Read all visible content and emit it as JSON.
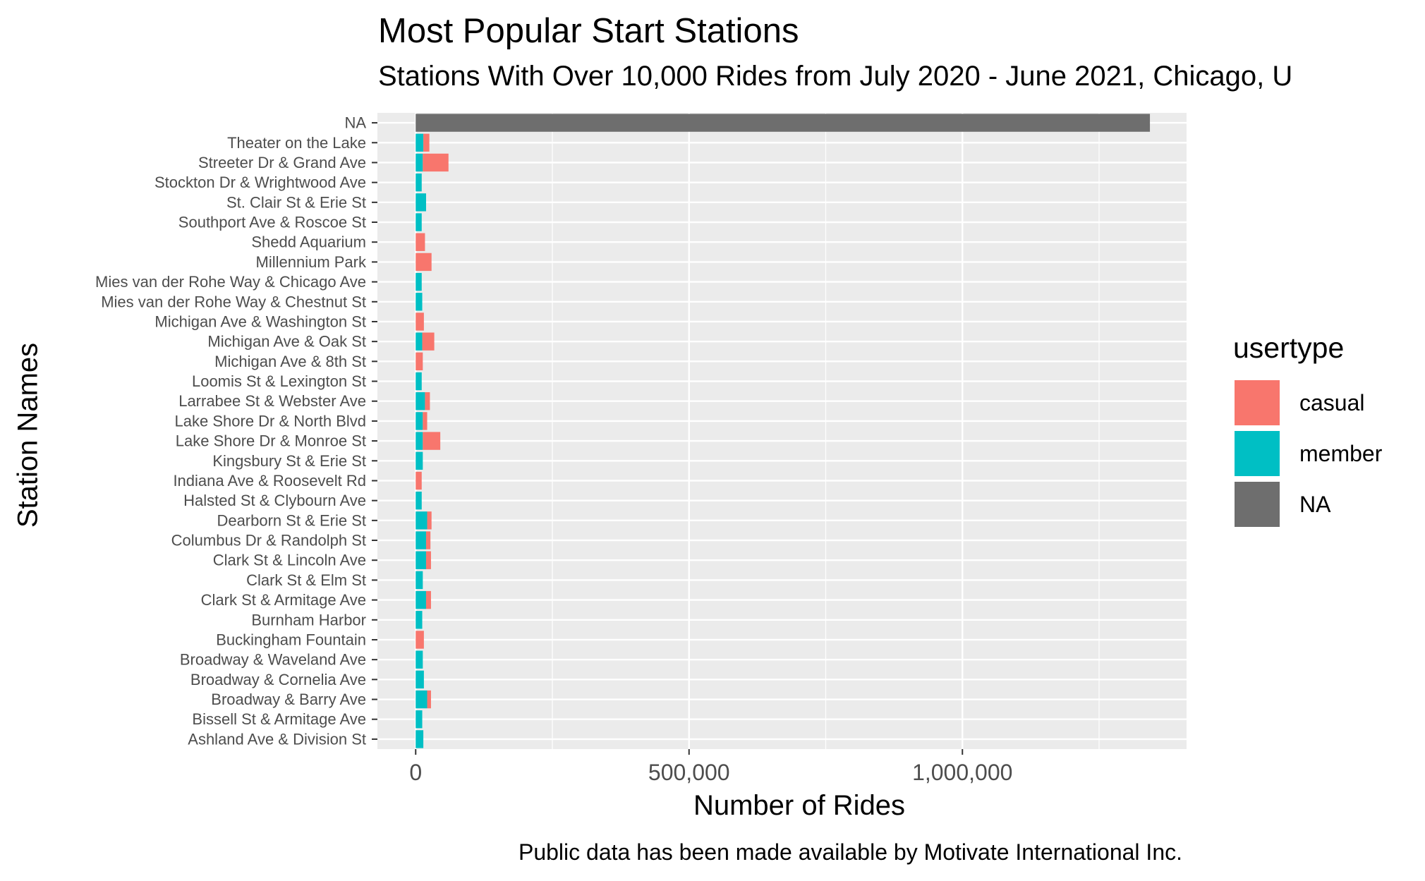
{
  "chart_data": {
    "type": "bar",
    "orientation": "horizontal",
    "stacked": true,
    "title": "Most Popular Start Stations",
    "subtitle": "Stations With Over 10,000 Rides from July 2020 - June 2021, Chicago, U",
    "xlabel": "Number of Rides",
    "ylabel": "Station Names",
    "caption": "Public data has been made available by Motivate International Inc.",
    "xlim": [
      -70000,
      1410000
    ],
    "x_ticks": [
      0,
      500000,
      1000000
    ],
    "x_tick_labels": [
      "0",
      "500,000",
      "1,000,000"
    ],
    "grid": true,
    "legend": {
      "title": "usertype",
      "position": "right"
    },
    "categories": [
      "NA",
      "Theater on the Lake",
      "Streeter Dr & Grand Ave",
      "Stockton Dr & Wrightwood Ave",
      "St. Clair St & Erie St",
      "Southport Ave & Roscoe St",
      "Shedd Aquarium",
      "Millennium Park",
      "Mies van der Rohe Way & Chicago Ave",
      "Mies van der Rohe Way & Chestnut St",
      "Michigan Ave & Washington St",
      "Michigan Ave & Oak St",
      "Michigan Ave & 8th St",
      "Loomis St & Lexington St",
      "Larrabee St & Webster Ave",
      "Lake Shore Dr & North Blvd",
      "Lake Shore Dr & Monroe St",
      "Kingsbury St & Erie St",
      "Indiana Ave & Roosevelt Rd",
      "Halsted St & Clybourn Ave",
      "Dearborn St & Erie St",
      "Columbus Dr & Randolph St",
      "Clark St & Lincoln Ave",
      "Clark St & Elm St",
      "Clark St & Armitage Ave",
      "Burnham Harbor",
      "Buckingham Fountain",
      "Broadway & Waveland Ave",
      "Broadway & Cornelia Ave",
      "Broadway & Barry Ave",
      "Bissell St & Armitage Ave",
      "Ashland Ave & Division St"
    ],
    "series": [
      {
        "name": "casual",
        "color": "#F8766D",
        "values": [
          0,
          11000,
          47000,
          0,
          0,
          0,
          17000,
          29000,
          0,
          0,
          15000,
          22000,
          13000,
          0,
          9000,
          8000,
          32000,
          0,
          11000,
          0,
          8000,
          8000,
          9000,
          0,
          9000,
          0,
          15000,
          0,
          0,
          7000,
          0,
          0
        ]
      },
      {
        "name": "member",
        "color": "#00BFC4",
        "values": [
          0,
          14000,
          13000,
          11000,
          19000,
          11000,
          0,
          0,
          11000,
          12000,
          0,
          12000,
          0,
          11000,
          17000,
          13000,
          13000,
          13000,
          0,
          11000,
          21000,
          19000,
          19000,
          13000,
          19000,
          12000,
          0,
          13000,
          15000,
          21000,
          12000,
          14000
        ]
      },
      {
        "name": "NA",
        "color": "#6E6E6E",
        "values": [
          1343000,
          0,
          0,
          0,
          0,
          0,
          0,
          0,
          0,
          0,
          0,
          0,
          0,
          0,
          0,
          0,
          0,
          0,
          0,
          0,
          0,
          0,
          0,
          0,
          0,
          0,
          0,
          0,
          0,
          0,
          0,
          0
        ]
      }
    ]
  }
}
